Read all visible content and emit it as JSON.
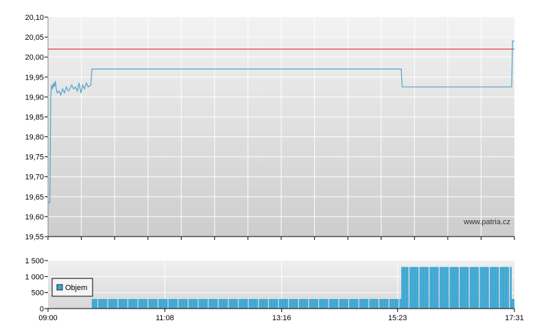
{
  "watermark": "www.patria.cz",
  "colors": {
    "price_line": "#4aa3c8",
    "reference_line": "#e03030",
    "volume_bar": "#3aa6d2",
    "grid": "#ffffff",
    "axis": "#000000"
  },
  "chart_data": [
    {
      "type": "line",
      "y_ticks": [
        "20,10",
        "20,05",
        "20,00",
        "19,95",
        "19,90",
        "19,85",
        "19,80",
        "19,75",
        "19,70",
        "19,65",
        "19,60",
        "19,55"
      ],
      "ylim": [
        19.55,
        20.1
      ],
      "x_range_minutes": [
        "09:00",
        "17:31"
      ],
      "reference_line": 20.02,
      "grid": true,
      "series": [
        {
          "points": [
            [
              "09:00",
              19.635
            ],
            [
              "09:02",
              19.635
            ],
            [
              "09:03",
              19.9
            ],
            [
              "09:04",
              19.93
            ],
            [
              "09:05",
              19.92
            ],
            [
              "09:06",
              19.935
            ],
            [
              "09:07",
              19.925
            ],
            [
              "09:08",
              19.94
            ],
            [
              "09:09",
              19.92
            ],
            [
              "09:10",
              19.91
            ],
            [
              "09:12",
              19.915
            ],
            [
              "09:14",
              19.905
            ],
            [
              "09:16",
              19.92
            ],
            [
              "09:18",
              19.91
            ],
            [
              "09:20",
              19.925
            ],
            [
              "09:22",
              19.915
            ],
            [
              "09:24",
              19.92
            ],
            [
              "09:26",
              19.93
            ],
            [
              "09:28",
              19.92
            ],
            [
              "09:30",
              19.925
            ],
            [
              "09:32",
              19.915
            ],
            [
              "09:34",
              19.935
            ],
            [
              "09:36",
              19.91
            ],
            [
              "09:38",
              19.93
            ],
            [
              "09:40",
              19.92
            ],
            [
              "09:42",
              19.935
            ],
            [
              "09:44",
              19.925
            ],
            [
              "09:47",
              19.93
            ],
            [
              "09:48",
              19.97
            ],
            [
              "15:27",
              19.97
            ],
            [
              "15:28",
              19.925
            ],
            [
              "17:28",
              19.925
            ],
            [
              "17:29",
              20.04
            ],
            [
              "17:31",
              20.04
            ]
          ]
        }
      ]
    },
    {
      "type": "bar",
      "y_ticks": [
        "1 500",
        "1 000",
        "500",
        "0"
      ],
      "ylim": [
        0,
        1500
      ],
      "x_ticks": [
        "09:00",
        "11:08",
        "13:16",
        "15:23",
        "17:31"
      ],
      "legend": [
        "Objem"
      ],
      "legend_position": "left",
      "segments": [
        {
          "from": "09:48",
          "to": "15:27",
          "value": 300
        },
        {
          "from": "15:27",
          "to": "17:28",
          "value": 1300
        },
        {
          "from": "17:28",
          "to": "17:31",
          "value": 300
        }
      ]
    }
  ]
}
